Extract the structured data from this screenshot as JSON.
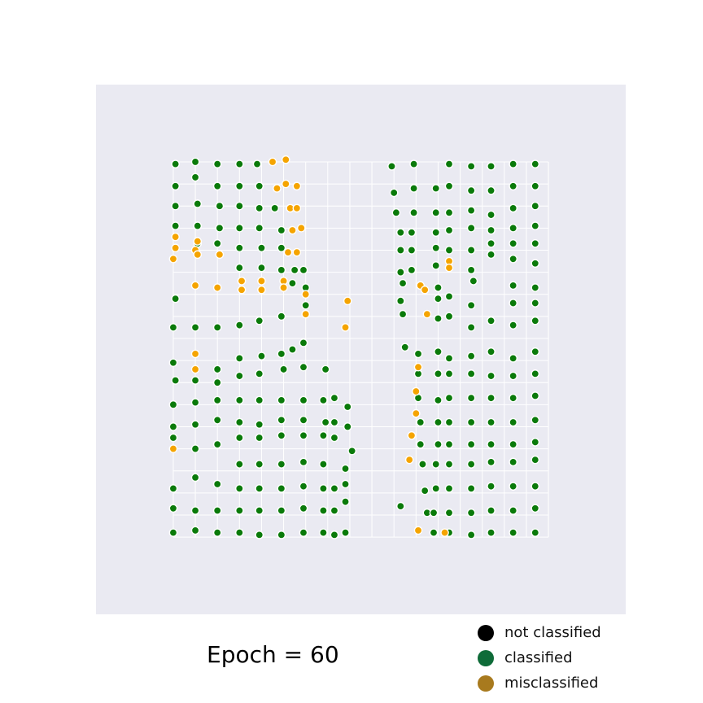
{
  "caption": {
    "prefix": "Epoch = ",
    "value": "60",
    "text": "Epoch = 60"
  },
  "legend": [
    {
      "label": "not classified",
      "color": "#000000"
    },
    {
      "label": "classified",
      "color": "#0e6b38"
    },
    {
      "label": "misclassified",
      "color": "#a87a1e"
    }
  ],
  "chart_data": {
    "type": "scatter",
    "title": "",
    "xlabel": "",
    "ylabel": "",
    "xlim": [
      0,
      24
    ],
    "ylim": [
      0,
      24
    ],
    "grid": true,
    "background": "#eaeaf2",
    "grid_color": "#ffffff",
    "vgrid_x": [
      3.5,
      4.5,
      5.5,
      6.5,
      7.5,
      8.5,
      9.5,
      10.5,
      11.5,
      12.5,
      13.5,
      14.5,
      15.5,
      16.5,
      17.5,
      18.5,
      19.5,
      20.5
    ],
    "hgrid_y": [
      3.5,
      4.5,
      5.5,
      6.5,
      7.5,
      8.5,
      9.5,
      10.5,
      11.5,
      12.5,
      13.5,
      14.5,
      15.5,
      16.5,
      17.5,
      18.5,
      19.5,
      20.5
    ],
    "marker_colors": {
      "classified": "#0a7a0a",
      "misclassified": "#f5a400",
      "edge": "#ffffff"
    },
    "legend_position": "below-right",
    "series": [
      {
        "name": "classified",
        "points": [
          [
            3.6,
            20.4
          ],
          [
            4.5,
            20.5
          ],
          [
            5.5,
            20.4
          ],
          [
            6.5,
            20.4
          ],
          [
            7.3,
            20.4
          ],
          [
            13.4,
            20.3
          ],
          [
            14.4,
            20.4
          ],
          [
            16.0,
            20.4
          ],
          [
            17.0,
            20.3
          ],
          [
            17.9,
            20.3
          ],
          [
            18.9,
            20.4
          ],
          [
            19.9,
            20.4
          ],
          [
            3.6,
            19.4
          ],
          [
            4.5,
            19.8
          ],
          [
            5.5,
            19.4
          ],
          [
            6.5,
            19.4
          ],
          [
            7.4,
            19.4
          ],
          [
            13.5,
            19.1
          ],
          [
            14.4,
            19.3
          ],
          [
            15.4,
            19.3
          ],
          [
            16.0,
            19.4
          ],
          [
            17.0,
            19.2
          ],
          [
            17.9,
            19.2
          ],
          [
            18.9,
            19.4
          ],
          [
            19.9,
            19.4
          ],
          [
            3.6,
            18.5
          ],
          [
            4.6,
            18.6
          ],
          [
            5.6,
            18.5
          ],
          [
            6.5,
            18.5
          ],
          [
            7.4,
            18.4
          ],
          [
            8.1,
            18.4
          ],
          [
            13.6,
            18.2
          ],
          [
            14.4,
            18.2
          ],
          [
            15.4,
            18.2
          ],
          [
            16.0,
            18.2
          ],
          [
            17.0,
            18.3
          ],
          [
            17.9,
            18.1
          ],
          [
            18.9,
            18.4
          ],
          [
            19.9,
            18.5
          ],
          [
            3.6,
            17.6
          ],
          [
            4.6,
            17.6
          ],
          [
            5.6,
            17.5
          ],
          [
            6.5,
            17.5
          ],
          [
            7.4,
            17.5
          ],
          [
            8.4,
            17.4
          ],
          [
            13.8,
            17.3
          ],
          [
            14.3,
            17.3
          ],
          [
            15.4,
            17.3
          ],
          [
            16.0,
            17.4
          ],
          [
            17.0,
            17.5
          ],
          [
            17.9,
            17.4
          ],
          [
            18.9,
            17.5
          ],
          [
            19.9,
            17.6
          ],
          [
            4.6,
            16.8
          ],
          [
            5.5,
            16.8
          ],
          [
            6.5,
            16.6
          ],
          [
            7.5,
            16.6
          ],
          [
            8.4,
            16.6
          ],
          [
            13.8,
            16.5
          ],
          [
            14.3,
            16.5
          ],
          [
            15.4,
            16.6
          ],
          [
            16.0,
            16.5
          ],
          [
            17.0,
            16.5
          ],
          [
            17.9,
            16.8
          ],
          [
            18.9,
            16.8
          ],
          [
            19.9,
            16.8
          ],
          [
            6.5,
            15.7
          ],
          [
            7.5,
            15.7
          ],
          [
            8.4,
            15.6
          ],
          [
            9.0,
            15.6
          ],
          [
            9.4,
            15.6
          ],
          [
            13.8,
            15.5
          ],
          [
            14.3,
            15.6
          ],
          [
            15.4,
            15.8
          ],
          [
            17.0,
            15.6
          ],
          [
            17.9,
            16.3
          ],
          [
            18.9,
            16.1
          ],
          [
            19.9,
            15.9
          ],
          [
            3.6,
            14.3
          ],
          [
            8.9,
            15.0
          ],
          [
            9.5,
            14.8
          ],
          [
            13.9,
            15.0
          ],
          [
            15.5,
            14.8
          ],
          [
            17.1,
            15.1
          ],
          [
            18.9,
            14.9
          ],
          [
            19.9,
            14.8
          ],
          [
            9.5,
            14.0
          ],
          [
            13.8,
            14.2
          ],
          [
            15.5,
            14.3
          ],
          [
            16.0,
            14.4
          ],
          [
            17.0,
            14.0
          ],
          [
            18.9,
            14.1
          ],
          [
            19.9,
            14.1
          ],
          [
            3.5,
            13.0
          ],
          [
            4.5,
            13.0
          ],
          [
            5.5,
            13.0
          ],
          [
            6.5,
            13.1
          ],
          [
            7.4,
            13.3
          ],
          [
            8.4,
            13.5
          ],
          [
            9.5,
            13.6
          ],
          [
            13.9,
            13.6
          ],
          [
            15.5,
            13.4
          ],
          [
            16.0,
            13.5
          ],
          [
            17.0,
            13.0
          ],
          [
            17.9,
            13.3
          ],
          [
            18.9,
            13.1
          ],
          [
            19.9,
            13.3
          ],
          [
            9.4,
            12.3
          ],
          [
            8.9,
            12.0
          ],
          [
            14.0,
            12.1
          ],
          [
            14.6,
            11.8
          ],
          [
            15.5,
            11.9
          ],
          [
            16.0,
            11.6
          ],
          [
            17.0,
            11.7
          ],
          [
            17.9,
            11.9
          ],
          [
            18.9,
            11.6
          ],
          [
            19.9,
            11.9
          ],
          [
            3.5,
            11.4
          ],
          [
            5.5,
            11.1
          ],
          [
            6.5,
            11.6
          ],
          [
            7.5,
            11.7
          ],
          [
            8.4,
            11.8
          ],
          [
            3.6,
            10.6
          ],
          [
            5.5,
            10.5
          ],
          [
            6.5,
            10.8
          ],
          [
            7.4,
            10.9
          ],
          [
            8.5,
            11.1
          ],
          [
            9.4,
            11.2
          ],
          [
            10.4,
            11.1
          ],
          [
            14.6,
            10.9
          ],
          [
            15.5,
            10.9
          ],
          [
            16.0,
            10.9
          ],
          [
            17.0,
            10.9
          ],
          [
            17.9,
            10.8
          ],
          [
            18.9,
            10.8
          ],
          [
            19.9,
            10.9
          ],
          [
            4.5,
            10.6
          ],
          [
            3.5,
            9.5
          ],
          [
            4.5,
            9.6
          ],
          [
            5.5,
            9.7
          ],
          [
            6.5,
            9.7
          ],
          [
            7.4,
            9.7
          ],
          [
            8.4,
            9.7
          ],
          [
            9.4,
            9.7
          ],
          [
            10.3,
            9.7
          ],
          [
            10.8,
            9.8
          ],
          [
            11.4,
            9.4
          ],
          [
            14.6,
            9.8
          ],
          [
            15.5,
            9.7
          ],
          [
            16.0,
            9.8
          ],
          [
            17.0,
            9.8
          ],
          [
            17.9,
            9.8
          ],
          [
            18.9,
            9.8
          ],
          [
            19.9,
            9.9
          ],
          [
            3.5,
            8.5
          ],
          [
            4.5,
            8.6
          ],
          [
            5.5,
            8.8
          ],
          [
            6.5,
            8.7
          ],
          [
            7.4,
            8.6
          ],
          [
            8.4,
            8.8
          ],
          [
            9.4,
            8.8
          ],
          [
            10.4,
            8.7
          ],
          [
            10.8,
            8.7
          ],
          [
            14.7,
            8.7
          ],
          [
            15.5,
            8.7
          ],
          [
            16.0,
            8.7
          ],
          [
            17.0,
            8.7
          ],
          [
            17.9,
            8.7
          ],
          [
            18.9,
            8.7
          ],
          [
            19.9,
            8.8
          ],
          [
            3.5,
            8.0
          ],
          [
            4.5,
            7.5
          ],
          [
            5.5,
            7.7
          ],
          [
            6.5,
            8.0
          ],
          [
            7.4,
            8.0
          ],
          [
            8.4,
            8.1
          ],
          [
            9.4,
            8.1
          ],
          [
            10.3,
            8.1
          ],
          [
            10.8,
            8.0
          ],
          [
            11.4,
            8.5
          ],
          [
            14.7,
            7.7
          ],
          [
            15.5,
            7.7
          ],
          [
            16.0,
            7.7
          ],
          [
            17.0,
            7.7
          ],
          [
            17.9,
            7.7
          ],
          [
            18.9,
            7.7
          ],
          [
            19.9,
            7.8
          ],
          [
            6.5,
            6.8
          ],
          [
            7.4,
            6.8
          ],
          [
            8.4,
            6.8
          ],
          [
            9.4,
            6.9
          ],
          [
            10.3,
            6.8
          ],
          [
            11.3,
            6.6
          ],
          [
            11.6,
            7.4
          ],
          [
            14.8,
            6.8
          ],
          [
            15.4,
            6.8
          ],
          [
            16.0,
            6.8
          ],
          [
            17.0,
            6.8
          ],
          [
            17.9,
            6.9
          ],
          [
            18.9,
            6.9
          ],
          [
            19.9,
            7.0
          ],
          [
            3.5,
            5.7
          ],
          [
            4.5,
            6.2
          ],
          [
            5.5,
            5.9
          ],
          [
            6.5,
            5.7
          ],
          [
            7.4,
            5.7
          ],
          [
            8.4,
            5.7
          ],
          [
            9.4,
            5.8
          ],
          [
            10.3,
            5.7
          ],
          [
            10.8,
            5.7
          ],
          [
            11.3,
            5.9
          ],
          [
            14.9,
            5.6
          ],
          [
            15.4,
            5.7
          ],
          [
            16.0,
            5.7
          ],
          [
            17.0,
            5.7
          ],
          [
            17.9,
            5.8
          ],
          [
            18.9,
            5.8
          ],
          [
            19.9,
            5.8
          ],
          [
            3.5,
            4.8
          ],
          [
            4.5,
            4.7
          ],
          [
            5.5,
            4.7
          ],
          [
            6.5,
            4.7
          ],
          [
            7.4,
            4.7
          ],
          [
            8.4,
            4.7
          ],
          [
            9.4,
            4.8
          ],
          [
            10.3,
            4.7
          ],
          [
            10.8,
            4.7
          ],
          [
            11.3,
            5.1
          ],
          [
            13.8,
            4.9
          ],
          [
            15.0,
            4.6
          ],
          [
            15.3,
            4.6
          ],
          [
            16.0,
            4.6
          ],
          [
            17.0,
            4.6
          ],
          [
            17.9,
            4.7
          ],
          [
            18.9,
            4.7
          ],
          [
            19.9,
            4.8
          ],
          [
            3.5,
            3.7
          ],
          [
            4.5,
            3.8
          ],
          [
            5.5,
            3.7
          ],
          [
            6.5,
            3.7
          ],
          [
            7.4,
            3.6
          ],
          [
            8.4,
            3.6
          ],
          [
            9.4,
            3.7
          ],
          [
            10.3,
            3.7
          ],
          [
            10.8,
            3.6
          ],
          [
            11.3,
            3.7
          ],
          [
            15.3,
            3.7
          ],
          [
            16.0,
            3.7
          ],
          [
            17.0,
            3.6
          ],
          [
            17.9,
            3.7
          ],
          [
            18.9,
            3.7
          ],
          [
            19.9,
            3.7
          ]
        ]
      },
      {
        "name": "misclassified",
        "points": [
          [
            8.0,
            20.5
          ],
          [
            8.6,
            20.6
          ],
          [
            8.2,
            19.3
          ],
          [
            8.6,
            19.5
          ],
          [
            9.1,
            19.4
          ],
          [
            8.8,
            18.4
          ],
          [
            9.1,
            18.4
          ],
          [
            8.9,
            17.4
          ],
          [
            9.3,
            17.5
          ],
          [
            3.6,
            17.1
          ],
          [
            3.6,
            16.6
          ],
          [
            3.5,
            16.1
          ],
          [
            4.6,
            16.9
          ],
          [
            4.5,
            16.5
          ],
          [
            4.6,
            16.3
          ],
          [
            5.6,
            16.3
          ],
          [
            8.7,
            16.4
          ],
          [
            9.1,
            16.4
          ],
          [
            16.0,
            16.0
          ],
          [
            16.0,
            15.7
          ],
          [
            4.5,
            14.9
          ],
          [
            5.5,
            14.8
          ],
          [
            6.6,
            15.1
          ],
          [
            7.5,
            15.1
          ],
          [
            8.5,
            15.1
          ],
          [
            6.6,
            14.7
          ],
          [
            7.5,
            14.7
          ],
          [
            8.5,
            14.8
          ],
          [
            9.5,
            14.5
          ],
          [
            14.7,
            14.9
          ],
          [
            14.9,
            14.7
          ],
          [
            11.4,
            14.2
          ],
          [
            9.5,
            13.6
          ],
          [
            15.0,
            13.6
          ],
          [
            11.3,
            13.0
          ],
          [
            4.5,
            11.8
          ],
          [
            4.5,
            11.1
          ],
          [
            14.6,
            11.2
          ],
          [
            14.5,
            10.1
          ],
          [
            14.5,
            9.1
          ],
          [
            14.3,
            8.1
          ],
          [
            3.5,
            7.5
          ],
          [
            14.2,
            7.0
          ],
          [
            14.6,
            3.8
          ],
          [
            15.8,
            3.7
          ]
        ]
      }
    ]
  }
}
